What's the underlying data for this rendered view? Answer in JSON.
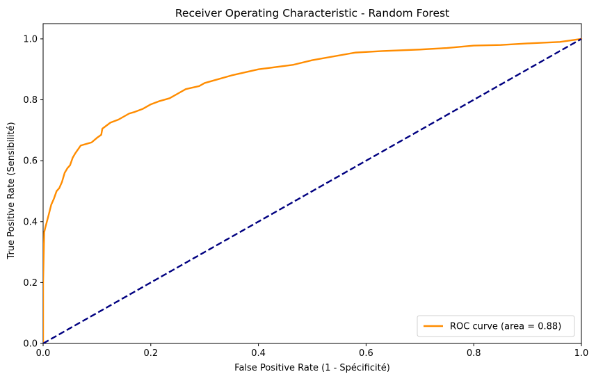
{
  "chart_data": {
    "type": "line",
    "title": "Receiver Operating Characteristic - Random Forest",
    "xlabel": "False Positive Rate (1 - Spécificité)",
    "ylabel": "True Positive Rate (Sensibilité)",
    "xlim": [
      0.0,
      1.0
    ],
    "ylim": [
      0.0,
      1.05
    ],
    "x_ticks": [
      "0.0",
      "0.2",
      "0.4",
      "0.6",
      "0.8",
      "1.0"
    ],
    "y_ticks": [
      "0.0",
      "0.2",
      "0.4",
      "0.6",
      "0.8",
      "1.0"
    ],
    "grid": false,
    "legend_position": "lower right",
    "series": [
      {
        "name": "ROC curve (area = 0.88)",
        "color": "#ff8c00",
        "style": "solid",
        "x": [
          0.0,
          0.0,
          0.002,
          0.004,
          0.01,
          0.015,
          0.02,
          0.025,
          0.03,
          0.035,
          0.04,
          0.045,
          0.05,
          0.055,
          0.06,
          0.07,
          0.08,
          0.09,
          0.1,
          0.108,
          0.11,
          0.125,
          0.14,
          0.15,
          0.16,
          0.17,
          0.185,
          0.2,
          0.215,
          0.235,
          0.25,
          0.265,
          0.29,
          0.3,
          0.32,
          0.35,
          0.4,
          0.465,
          0.5,
          0.58,
          0.63,
          0.7,
          0.75,
          0.8,
          0.85,
          0.9,
          0.96,
          1.0
        ],
        "y": [
          0.0,
          0.2,
          0.365,
          0.38,
          0.42,
          0.455,
          0.475,
          0.5,
          0.51,
          0.53,
          0.56,
          0.575,
          0.585,
          0.61,
          0.625,
          0.65,
          0.655,
          0.66,
          0.675,
          0.685,
          0.705,
          0.725,
          0.735,
          0.745,
          0.755,
          0.76,
          0.77,
          0.785,
          0.795,
          0.805,
          0.82,
          0.835,
          0.845,
          0.855,
          0.865,
          0.88,
          0.9,
          0.915,
          0.93,
          0.955,
          0.96,
          0.965,
          0.97,
          0.978,
          0.98,
          0.985,
          0.99,
          1.0
        ]
      },
      {
        "color": "#000080",
        "style": "dashed",
        "x": [
          0.0,
          1.0
        ],
        "y": [
          0.0,
          1.0
        ]
      }
    ]
  }
}
